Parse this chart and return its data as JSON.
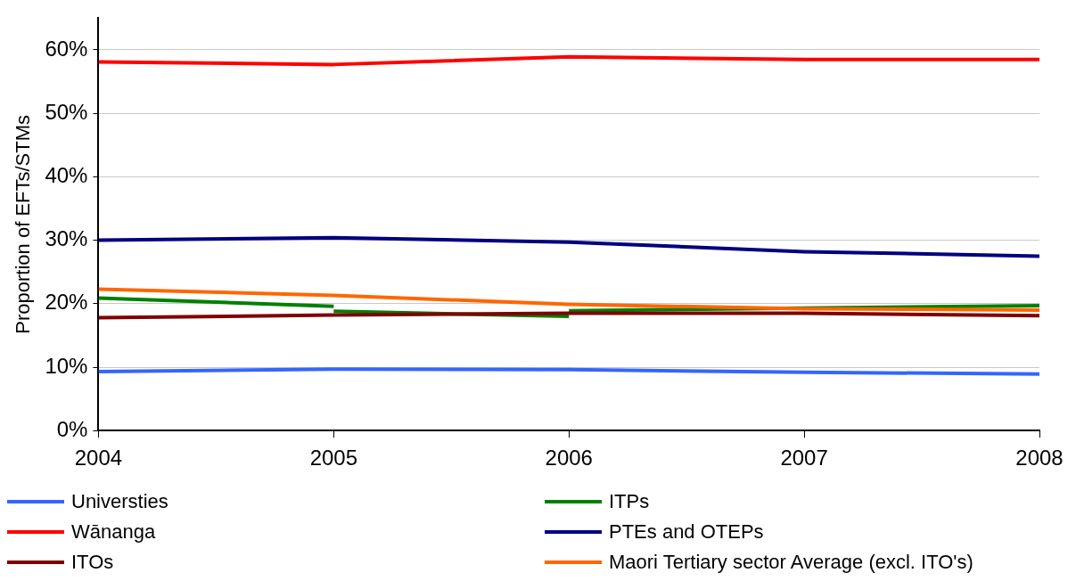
{
  "chart_data": {
    "type": "line",
    "ylabel": "Proportion of EFTs/STMs",
    "x": [
      2004,
      2005,
      2006,
      2007,
      2008
    ],
    "xlim": [
      2004,
      2008
    ],
    "xticks": [
      2004,
      2005,
      2006,
      2007,
      2008
    ],
    "ylim": [
      0,
      65
    ],
    "yticks": [
      {
        "value": 0,
        "label": "0%"
      },
      {
        "value": 10,
        "label": "10%"
      },
      {
        "value": 20,
        "label": "20%"
      },
      {
        "value": 30,
        "label": "30%"
      },
      {
        "value": 40,
        "label": "40%"
      },
      {
        "value": 50,
        "label": "50%"
      },
      {
        "value": 60,
        "label": "60%"
      }
    ],
    "grid": "y",
    "legend": "bottom",
    "marker": "none",
    "line_style": "solid",
    "series": [
      {
        "name": "Universties",
        "color": "#3366ff",
        "values": [
          9.3,
          9.7,
          9.6,
          9.2,
          8.9
        ]
      },
      {
        "name": "ITPs",
        "color": "#008000",
        "x": [
          2004,
          2005
        ],
        "values": [
          20.9,
          19.6
        ]
      },
      {
        "name": "Wānanga",
        "color": "#ff0000",
        "values": [
          58.1,
          57.7,
          58.9,
          58.5,
          58.5
        ]
      },
      {
        "name": "PTEs and OTEPs",
        "color": "#000080",
        "values": [
          30.0,
          30.4,
          29.7,
          28.2,
          27.5
        ]
      },
      {
        "name": "ITOs",
        "color": "#800000",
        "values": [
          17.8,
          18.2,
          18.5,
          18.5,
          18.1
        ]
      },
      {
        "name": "Maori Tertiary sector Average (excl. ITO's)",
        "color": "#ff6600",
        "values": [
          22.3,
          21.3,
          19.9,
          19.2,
          19.0
        ]
      },
      {
        "color": "#008000",
        "x": [
          2005,
          2006
        ],
        "values": [
          18.8,
          18.0
        ]
      },
      {
        "color": "#008000",
        "x": [
          2006,
          2007,
          2008
        ],
        "values": [
          18.9,
          19.3,
          19.7
        ]
      }
    ]
  }
}
